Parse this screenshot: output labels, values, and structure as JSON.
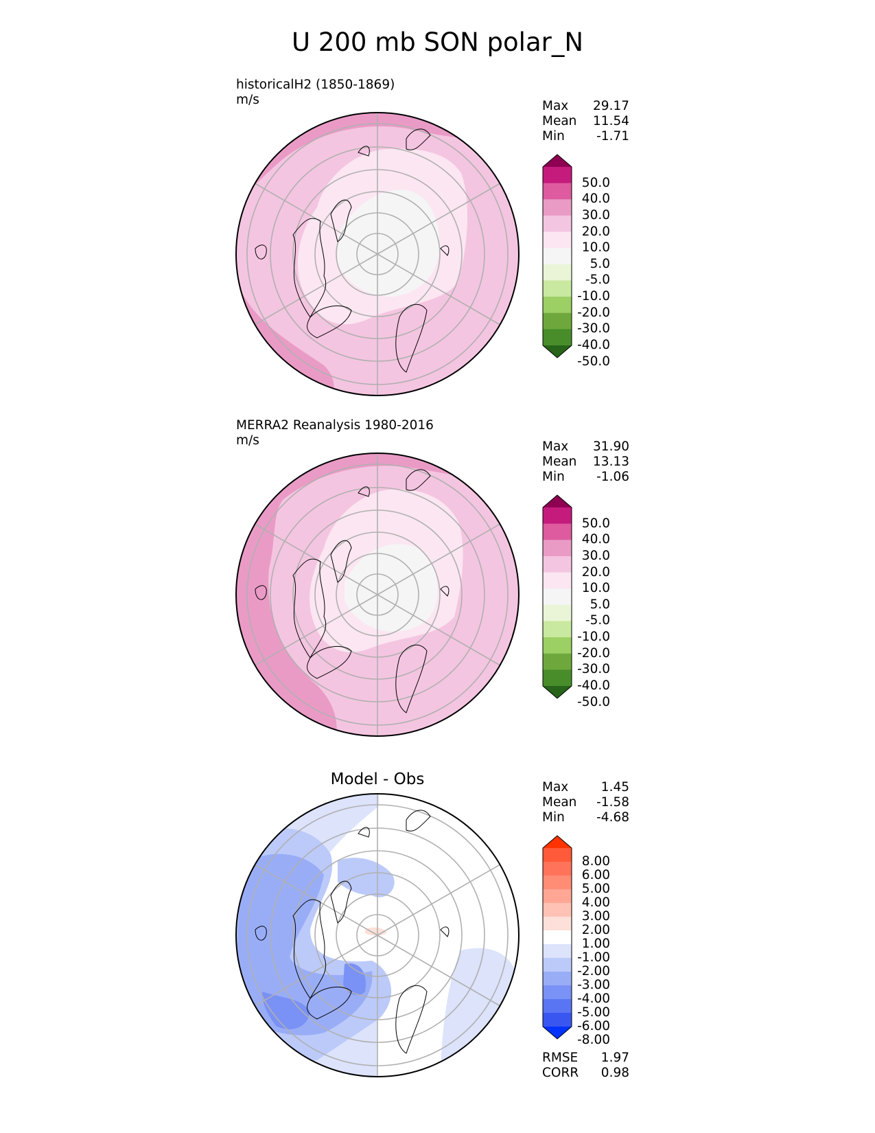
{
  "figure": {
    "title": "U 200 mb SON polar_N"
  },
  "chart_data": [
    {
      "type": "contour-map",
      "projection": "north-polar-stereographic",
      "title": "historicalH2 (1850-1869)",
      "units": "m/s",
      "stats": [
        {
          "label": "Max",
          "value": "29.17"
        },
        {
          "label": "Mean",
          "value": "11.54"
        },
        {
          "label": "Min",
          "value": "-1.71"
        }
      ],
      "levels": [
        50.0,
        40.0,
        30.0,
        20.0,
        10.0,
        5.0,
        -5.0,
        -10.0,
        -20.0,
        -30.0,
        -40.0,
        -50.0
      ],
      "level_labels": [
        "50.0",
        "40.0",
        "30.0",
        "20.0",
        "10.0",
        "5.0",
        "-5.0",
        "-10.0",
        "-20.0",
        "-30.0",
        "-40.0",
        "-50.0"
      ],
      "colors": [
        "#8e0152",
        "#c51b7d",
        "#de5b9f",
        "#e99bc6",
        "#f4c5e0",
        "#fbe6f1",
        "#f5f5f5",
        "#e9f5d6",
        "#c9e8a0",
        "#9ccf64",
        "#6ea83c",
        "#488d2a",
        "#276419"
      ]
    },
    {
      "type": "contour-map",
      "projection": "north-polar-stereographic",
      "title": "MERRA2 Reanalysis 1980-2016",
      "units": "m/s",
      "stats": [
        {
          "label": "Max",
          "value": "31.90"
        },
        {
          "label": "Mean",
          "value": "13.13"
        },
        {
          "label": "Min",
          "value": "-1.06"
        }
      ],
      "levels": [
        50.0,
        40.0,
        30.0,
        20.0,
        10.0,
        5.0,
        -5.0,
        -10.0,
        -20.0,
        -30.0,
        -40.0,
        -50.0
      ],
      "level_labels": [
        "50.0",
        "40.0",
        "30.0",
        "20.0",
        "10.0",
        "5.0",
        "-5.0",
        "-10.0",
        "-20.0",
        "-30.0",
        "-40.0",
        "-50.0"
      ],
      "colors": [
        "#8e0152",
        "#c51b7d",
        "#de5b9f",
        "#e99bc6",
        "#f4c5e0",
        "#fbe6f1",
        "#f5f5f5",
        "#e9f5d6",
        "#c9e8a0",
        "#9ccf64",
        "#6ea83c",
        "#488d2a",
        "#276419"
      ]
    },
    {
      "type": "contour-map",
      "projection": "north-polar-stereographic",
      "title": "Model - Obs",
      "stats": [
        {
          "label": "Max",
          "value": "1.45"
        },
        {
          "label": "Mean",
          "value": "-1.58"
        },
        {
          "label": "Min",
          "value": "-4.68"
        }
      ],
      "metrics": [
        {
          "label": "RMSE",
          "value": "1.97"
        },
        {
          "label": "CORR",
          "value": "0.98"
        }
      ],
      "levels": [
        8.0,
        6.0,
        5.0,
        4.0,
        3.0,
        2.0,
        1.0,
        -1.0,
        -2.0,
        -3.0,
        -4.0,
        -5.0,
        -6.0,
        -8.0
      ],
      "level_labels": [
        "8.00",
        "6.00",
        "5.00",
        "4.00",
        "3.00",
        "2.00",
        "1.00",
        "-1.00",
        "-2.00",
        "-3.00",
        "-4.00",
        "-5.00",
        "-6.00",
        "-8.00"
      ],
      "colors": [
        "#ff3300",
        "#ff5a3a",
        "#ff735a",
        "#ff8c75",
        "#ffa794",
        "#ffc2b5",
        "#fde0d9",
        "#ffffff",
        "#dce3fb",
        "#bccafa",
        "#99adf7",
        "#7a91f5",
        "#5a75f3",
        "#3a56f0",
        "#0433ff"
      ]
    }
  ]
}
